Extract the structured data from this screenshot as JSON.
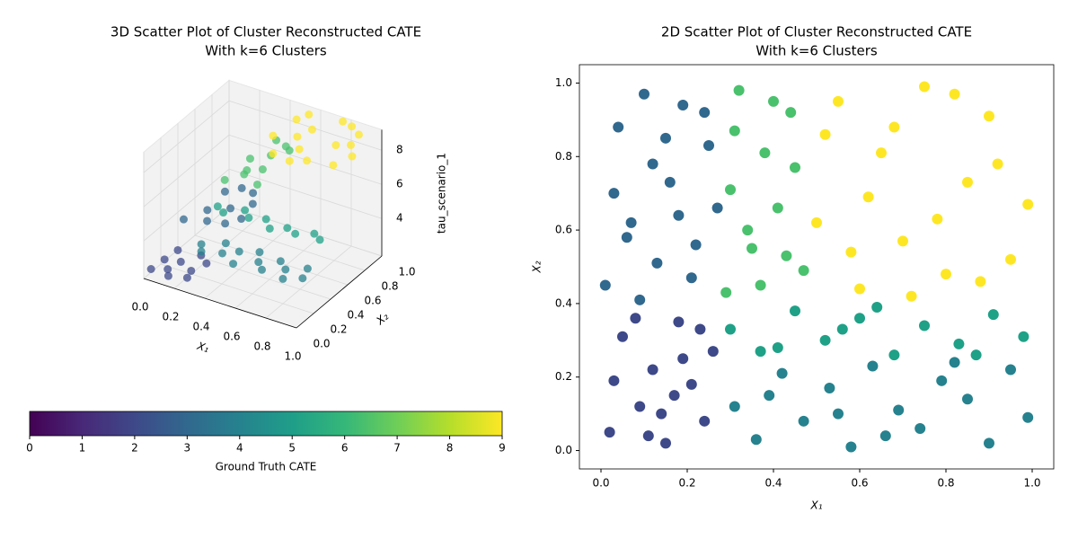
{
  "chart_data": [
    {
      "type": "scatter3d",
      "title": [
        "3D Scatter Plot of Cluster Reconstructed CATE",
        "With k=6 Clusters"
      ],
      "xlabel": "X₁",
      "ylabel": "X₂",
      "zlabel": "tau_scenario_1",
      "xlim": [
        0,
        1
      ],
      "ylim": [
        0,
        1
      ],
      "zlim": [
        1.8,
        9.2
      ],
      "xticks": [
        {
          "value": 0,
          "label": "0.0"
        },
        {
          "value": 0.2,
          "label": "0.2"
        },
        {
          "value": 0.4,
          "label": "0.4"
        },
        {
          "value": 0.6,
          "label": "0.6"
        },
        {
          "value": 0.8,
          "label": "0.8"
        },
        {
          "value": 1,
          "label": "1.0"
        }
      ],
      "yticks": [
        {
          "value": 0,
          "label": "0.0"
        },
        {
          "value": 0.2,
          "label": "0.2"
        },
        {
          "value": 0.4,
          "label": "0.4"
        },
        {
          "value": 0.6,
          "label": "0.6"
        },
        {
          "value": 0.8,
          "label": "0.8"
        },
        {
          "value": 1,
          "label": "1.0"
        }
      ],
      "zticks": [
        4,
        6,
        8
      ],
      "series": [
        {
          "color": "#3e4989",
          "x": [
            0.02,
            0.05,
            0.09,
            0.12,
            0.15,
            0.18,
            0.21,
            0.24,
            0.26,
            0.03
          ],
          "y": [
            0.05,
            0.31,
            0.12,
            0.22,
            0.02,
            0.35,
            0.18,
            0.08,
            0.27,
            0.19
          ],
          "z": [
            2.2,
            2.3,
            2.1,
            2.2,
            2.3,
            2.2,
            2.1,
            2.2,
            2.3,
            2.2
          ]
        },
        {
          "color": "#31688e",
          "x": [
            0.01,
            0.04,
            0.07,
            0.1,
            0.13,
            0.16,
            0.19,
            0.22,
            0.25,
            0.27
          ],
          "y": [
            0.45,
            0.88,
            0.62,
            0.97,
            0.51,
            0.73,
            0.94,
            0.56,
            0.83,
            0.66
          ],
          "z": [
            3.4,
            3.3,
            3.4,
            3.3,
            3.4,
            3.3,
            3.4,
            3.3,
            3.4,
            3.3
          ]
        },
        {
          "color": "#26828e",
          "x": [
            0.31,
            0.36,
            0.42,
            0.47,
            0.53,
            0.58,
            0.63,
            0.69,
            0.74,
            0.79,
            0.85,
            0.9,
            0.95,
            0.99
          ],
          "y": [
            0.12,
            0.03,
            0.21,
            0.08,
            0.17,
            0.01,
            0.23,
            0.11,
            0.06,
            0.19,
            0.14,
            0.02,
            0.22,
            0.09
          ],
          "z": [
            4.2,
            4.3,
            4.2,
            4.3,
            4.2,
            4.3,
            4.2,
            4.3,
            4.2,
            4.3,
            4.2,
            4.3,
            4.2,
            4.3
          ]
        },
        {
          "color": "#1fa187",
          "x": [
            0.3,
            0.37,
            0.45,
            0.52,
            0.6,
            0.68,
            0.75,
            0.83,
            0.91,
            0.98
          ],
          "y": [
            0.33,
            0.27,
            0.38,
            0.3,
            0.36,
            0.26,
            0.34,
            0.29,
            0.37,
            0.31
          ],
          "z": [
            5.5,
            5.6,
            5.5,
            5.6,
            5.5,
            5.6,
            5.5,
            5.6,
            5.5,
            5.6
          ]
        },
        {
          "color": "#4ac16d",
          "x": [
            0.29,
            0.32,
            0.35,
            0.38,
            0.41,
            0.44,
            0.47,
            0.3,
            0.34,
            0.4
          ],
          "y": [
            0.43,
            0.98,
            0.55,
            0.81,
            0.66,
            0.92,
            0.49,
            0.71,
            0.6,
            0.95
          ],
          "z": [
            6.6,
            6.7,
            6.6,
            6.7,
            6.6,
            6.7,
            6.6,
            6.7,
            6.6,
            6.7
          ]
        },
        {
          "color": "#fde725",
          "x": [
            0.5,
            0.55,
            0.6,
            0.65,
            0.7,
            0.75,
            0.8,
            0.85,
            0.9,
            0.95,
            0.99,
            0.52,
            0.62,
            0.72,
            0.82,
            0.92
          ],
          "y": [
            0.62,
            0.95,
            0.44,
            0.81,
            0.57,
            0.99,
            0.48,
            0.73,
            0.91,
            0.52,
            0.67,
            0.86,
            0.69,
            0.42,
            0.97,
            0.78
          ],
          "z": [
            9,
            9,
            9,
            9,
            9,
            9,
            9,
            9,
            9,
            9,
            9,
            9,
            9,
            9,
            9,
            9
          ]
        }
      ],
      "colorbar": {
        "label": "Ground Truth CATE",
        "lim": [
          0,
          9
        ],
        "ticks": [
          0,
          1,
          2,
          3,
          4,
          5,
          6,
          7,
          8,
          9
        ],
        "colors": [
          "#440154",
          "#482878",
          "#3e4989",
          "#31688e",
          "#26828e",
          "#1f9e89",
          "#35b779",
          "#6ece58",
          "#b5de2b",
          "#fde725"
        ]
      }
    },
    {
      "type": "scatter",
      "title": [
        "2D Scatter Plot of Cluster Reconstructed CATE",
        "With k=6 Clusters"
      ],
      "xlabel": "X₁",
      "ylabel": "X₂",
      "xlim": [
        -0.05,
        1.05
      ],
      "ylim": [
        -0.05,
        1.05
      ],
      "xticks": [
        {
          "value": 0,
          "label": "0.0"
        },
        {
          "value": 0.2,
          "label": "0.2"
        },
        {
          "value": 0.4,
          "label": "0.4"
        },
        {
          "value": 0.6,
          "label": "0.6"
        },
        {
          "value": 0.8,
          "label": "0.8"
        },
        {
          "value": 1,
          "label": "1.0"
        }
      ],
      "yticks": [
        {
          "value": 0,
          "label": "0.0"
        },
        {
          "value": 0.2,
          "label": "0.2"
        },
        {
          "value": 0.4,
          "label": "0.4"
        },
        {
          "value": 0.6,
          "label": "0.6"
        },
        {
          "value": 0.8,
          "label": "0.8"
        },
        {
          "value": 1,
          "label": "1.0"
        }
      ],
      "series": [
        {
          "color": "#3e4989",
          "x": [
            0.02,
            0.05,
            0.09,
            0.12,
            0.15,
            0.18,
            0.21,
            0.24,
            0.26,
            0.03,
            0.08,
            0.14,
            0.19,
            0.23,
            0.11,
            0.17
          ],
          "y": [
            0.05,
            0.31,
            0.12,
            0.22,
            0.02,
            0.35,
            0.18,
            0.08,
            0.27,
            0.19,
            0.36,
            0.1,
            0.25,
            0.33,
            0.04,
            0.15
          ]
        },
        {
          "color": "#31688e",
          "x": [
            0.01,
            0.04,
            0.07,
            0.1,
            0.13,
            0.16,
            0.19,
            0.22,
            0.25,
            0.27,
            0.03,
            0.09,
            0.15,
            0.21,
            0.06,
            0.18,
            0.12,
            0.24
          ],
          "y": [
            0.45,
            0.88,
            0.62,
            0.97,
            0.51,
            0.73,
            0.94,
            0.56,
            0.83,
            0.66,
            0.7,
            0.41,
            0.85,
            0.47,
            0.58,
            0.64,
            0.78,
            0.92
          ]
        },
        {
          "color": "#26828e",
          "x": [
            0.31,
            0.36,
            0.42,
            0.47,
            0.53,
            0.58,
            0.63,
            0.69,
            0.74,
            0.79,
            0.85,
            0.9,
            0.95,
            0.99,
            0.39,
            0.66,
            0.82,
            0.55
          ],
          "y": [
            0.12,
            0.03,
            0.21,
            0.08,
            0.17,
            0.01,
            0.23,
            0.11,
            0.06,
            0.19,
            0.14,
            0.02,
            0.22,
            0.09,
            0.15,
            0.04,
            0.24,
            0.1
          ]
        },
        {
          "color": "#1fa187",
          "x": [
            0.3,
            0.37,
            0.45,
            0.52,
            0.6,
            0.68,
            0.75,
            0.83,
            0.91,
            0.98,
            0.41,
            0.64,
            0.87,
            0.56
          ],
          "y": [
            0.33,
            0.27,
            0.38,
            0.3,
            0.36,
            0.26,
            0.34,
            0.29,
            0.37,
            0.31,
            0.28,
            0.39,
            0.26,
            0.33
          ]
        },
        {
          "color": "#4ac16d",
          "x": [
            0.29,
            0.32,
            0.35,
            0.38,
            0.41,
            0.44,
            0.47,
            0.3,
            0.34,
            0.4,
            0.45,
            0.37,
            0.31,
            0.43
          ],
          "y": [
            0.43,
            0.98,
            0.55,
            0.81,
            0.66,
            0.92,
            0.49,
            0.71,
            0.6,
            0.95,
            0.77,
            0.45,
            0.87,
            0.53
          ]
        },
        {
          "color": "#fde725",
          "x": [
            0.5,
            0.55,
            0.6,
            0.65,
            0.7,
            0.75,
            0.8,
            0.85,
            0.9,
            0.95,
            0.99,
            0.52,
            0.62,
            0.72,
            0.82,
            0.92,
            0.58,
            0.78,
            0.88,
            0.68
          ],
          "y": [
            0.62,
            0.95,
            0.44,
            0.81,
            0.57,
            0.99,
            0.48,
            0.73,
            0.91,
            0.52,
            0.67,
            0.86,
            0.69,
            0.42,
            0.97,
            0.78,
            0.54,
            0.63,
            0.46,
            0.88
          ]
        }
      ]
    }
  ]
}
